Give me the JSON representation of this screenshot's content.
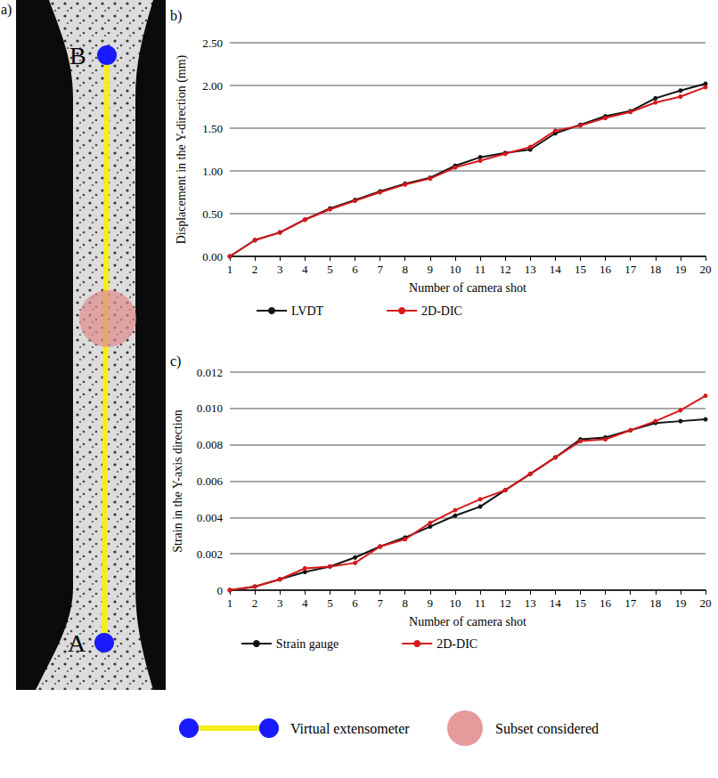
{
  "chart_data": [
    {
      "type": "line",
      "annotations": [
        "b)"
      ],
      "x_label": "Number of camera shot",
      "y_label": "Displacement in the Y-direction (mm)",
      "categories": [
        "1",
        "2",
        "3",
        "4",
        "5",
        "6",
        "7",
        "8",
        "9",
        "10",
        "11",
        "12",
        "13",
        "14",
        "15",
        "16",
        "17",
        "18",
        "19",
        "20"
      ],
      "series": [
        {
          "name": "LVDT",
          "color": "#111111",
          "marker": "circle",
          "values": [
            0,
            0.19,
            0.28,
            0.43,
            0.56,
            0.66,
            0.76,
            0.85,
            0.92,
            1.06,
            1.16,
            1.21,
            1.25,
            1.44,
            1.54,
            1.64,
            1.7,
            1.85,
            1.94,
            2.02
          ]
        },
        {
          "name": "2D-DIC",
          "color": "#d7191c",
          "marker": "circle",
          "values": [
            0,
            0.19,
            0.28,
            0.43,
            0.55,
            0.65,
            0.75,
            0.84,
            0.91,
            1.04,
            1.12,
            1.2,
            1.28,
            1.47,
            1.53,
            1.62,
            1.69,
            1.8,
            1.87,
            1.98
          ]
        }
      ],
      "ylim": [
        0,
        2.5
      ],
      "yticks": [
        {
          "value": 0,
          "label": "0.00"
        },
        {
          "value": 0.5,
          "label": "0.50"
        },
        {
          "value": 1,
          "label": "1.00"
        },
        {
          "value": 1.5,
          "label": "1.50"
        },
        {
          "value": 2,
          "label": "2.00"
        },
        {
          "value": 2.5,
          "label": "2.50"
        }
      ],
      "grid": true,
      "legend": "bottom"
    },
    {
      "type": "line",
      "annotations": [
        "c)"
      ],
      "x_label": "Number of camera shot",
      "y_label": "Strain in the Y-axis direction",
      "categories": [
        "1",
        "2",
        "3",
        "4",
        "5",
        "6",
        "7",
        "8",
        "9",
        "10",
        "11",
        "12",
        "13",
        "14",
        "15",
        "16",
        "17",
        "18",
        "19",
        "20"
      ],
      "series": [
        {
          "name": "Strain gauge",
          "color": "#111111",
          "marker": "circle",
          "values": [
            0,
            0.0002,
            0.0006,
            0.001,
            0.0013,
            0.0018,
            0.0024,
            0.0029,
            0.0035,
            0.0041,
            0.0046,
            0.0055,
            0.0064,
            0.0073,
            0.0083,
            0.0084,
            0.0088,
            0.0092,
            0.0093,
            0.0094
          ]
        },
        {
          "name": "2D-DIC",
          "color": "#d7191c",
          "marker": "circle",
          "values": [
            0,
            0.0002,
            0.0006,
            0.0012,
            0.0013,
            0.0015,
            0.0024,
            0.0028,
            0.0037,
            0.0044,
            0.005,
            0.0055,
            0.0064,
            0.0073,
            0.0082,
            0.0083,
            0.0088,
            0.0093,
            0.0099,
            0.0107
          ]
        }
      ],
      "ylim": [
        0,
        0.012
      ],
      "yticks": [
        0,
        0.002,
        0.004,
        0.006,
        0.008,
        {
          "value": 0.01,
          "label": "0.010"
        },
        0.012
      ],
      "grid": true,
      "legend": "bottom"
    }
  ],
  "panel_a": {
    "label": "a)",
    "point_labels": [
      "A",
      "B"
    ]
  },
  "key": [
    {
      "label": "Virtual extensometer",
      "color": "#1a1aff"
    },
    {
      "label": "Subset considered",
      "color": "#e08a8a"
    }
  ]
}
